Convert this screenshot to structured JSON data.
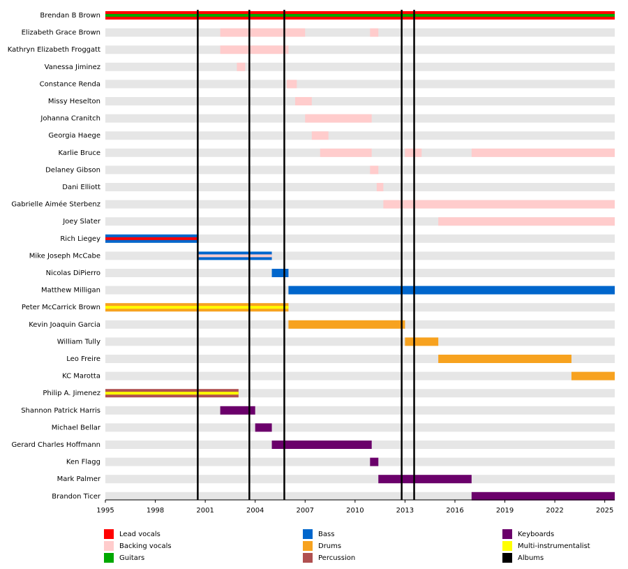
{
  "chart_data": {
    "type": "timeline",
    "categories": [
      "Brendan B Brown",
      "Elizabeth Grace Brown",
      "Kathryn Elizabeth Froggatt",
      "Vanessa Jiminez",
      "Constance Renda",
      "Missy Heselton",
      "Johanna Cranitch",
      "Georgia Haege",
      "Karlie Bruce",
      "Delaney Gibson",
      "Dani Elliott",
      "Gabrielle Aimée Sterbenz",
      "Joey Slater",
      "Rich Liegey",
      "Mike Joseph McCabe",
      "Nicolas DiPierro",
      "Matthew Milligan",
      "Peter McCarrick Brown",
      "Kevin Joaquin Garcia",
      "William Tully",
      "Leo Freire",
      "KC Marotta",
      "Philip A. Jimenez",
      "Shannon Patrick Harris",
      "Michael Bellar",
      "Gerard Charles Hoffmann",
      "Ken Flagg",
      "Mark Palmer",
      "Brandon Ticer"
    ],
    "series": [
      {
        "name": "Lead vocals",
        "color": "#ff0000",
        "values": [
          [
            [
              1995,
              2025.6
            ]
          ],
          null,
          null,
          null,
          null,
          null,
          null,
          null,
          null,
          null,
          null,
          null,
          null,
          [
            [
              1995,
              2000.6
            ]
          ],
          null,
          null,
          null,
          null,
          null,
          null,
          null,
          null,
          null,
          null,
          null,
          null,
          null,
          null,
          null
        ]
      },
      {
        "name": "Backing vocals",
        "color": "#ffcccc",
        "values": [
          null,
          [
            [
              2001.9,
              2007
            ],
            [
              2010.9,
              2011.4
            ]
          ],
          [
            [
              2001.9,
              2006
            ]
          ],
          [
            [
              2002.9,
              2003.4
            ]
          ],
          [
            [
              2005.9,
              2006.5
            ]
          ],
          [
            [
              2006.4,
              2007.4
            ]
          ],
          [
            [
              2007,
              2011
            ]
          ],
          [
            [
              2007.4,
              2008.4
            ]
          ],
          [
            [
              2007.9,
              2011
            ],
            [
              2013,
              2014
            ],
            [
              2017,
              2025.6
            ]
          ],
          [
            [
              2010.9,
              2011.4
            ]
          ],
          [
            [
              2011.3,
              2011.7
            ]
          ],
          [
            [
              2011.7,
              2025.6
            ]
          ],
          [
            [
              2015,
              2025.6
            ]
          ],
          null,
          [
            [
              2000.6,
              2005
            ]
          ],
          null,
          null,
          null,
          null,
          null,
          null,
          null,
          null,
          null,
          null,
          null,
          null,
          null,
          null
        ]
      },
      {
        "name": "Guitars",
        "color": "#00a800",
        "values": [
          [
            [
              1995,
              2025.6
            ]
          ],
          null,
          null,
          null,
          null,
          null,
          null,
          null,
          null,
          null,
          null,
          null,
          null,
          null,
          null,
          null,
          null,
          null,
          null,
          null,
          null,
          null,
          null,
          null,
          null,
          null,
          null,
          null,
          null
        ]
      },
      {
        "name": "Bass",
        "color": "#0066cc",
        "values": [
          null,
          null,
          null,
          null,
          null,
          null,
          null,
          null,
          null,
          null,
          null,
          null,
          null,
          [
            [
              1995,
              2000.6
            ]
          ],
          [
            [
              2000.6,
              2005
            ]
          ],
          [
            [
              2005,
              2006
            ]
          ],
          [
            [
              2006,
              2025.6
            ]
          ],
          null,
          null,
          null,
          null,
          null,
          null,
          null,
          null,
          null,
          null,
          null,
          null
        ]
      },
      {
        "name": "Drums",
        "color": "#f7a21f",
        "values": [
          null,
          null,
          null,
          null,
          null,
          null,
          null,
          null,
          null,
          null,
          null,
          null,
          null,
          null,
          null,
          null,
          null,
          [
            [
              1995,
              2006
            ]
          ],
          [
            [
              2006,
              2013
            ]
          ],
          [
            [
              2013,
              2015
            ]
          ],
          [
            [
              2015,
              2023
            ]
          ],
          [
            [
              2023,
              2025.6
            ]
          ],
          null,
          null,
          null,
          null,
          null,
          null,
          null
        ]
      },
      {
        "name": "Percussion",
        "color": "#b05050",
        "values": [
          null,
          null,
          null,
          null,
          null,
          null,
          null,
          null,
          null,
          null,
          null,
          null,
          null,
          null,
          null,
          null,
          null,
          null,
          null,
          null,
          null,
          null,
          [
            [
              1995,
              2003
            ]
          ],
          null,
          null,
          null,
          null,
          null,
          null
        ]
      },
      {
        "name": "Keyboards",
        "color": "#6b006b",
        "values": [
          null,
          null,
          null,
          null,
          null,
          null,
          null,
          null,
          null,
          null,
          null,
          null,
          null,
          null,
          null,
          null,
          null,
          null,
          null,
          null,
          null,
          null,
          null,
          [
            [
              2001.9,
              2004
            ]
          ],
          [
            [
              2004,
              2005
            ]
          ],
          [
            [
              2005,
              2011
            ]
          ],
          [
            [
              2010.9,
              2011.4
            ]
          ],
          [
            [
              2011.4,
              2017
            ]
          ],
          [
            [
              2017,
              2025.6
            ]
          ]
        ]
      },
      {
        "name": "Multi-instrumentalist",
        "color": "#ffff00",
        "values": [
          null,
          null,
          null,
          null,
          null,
          null,
          null,
          null,
          null,
          null,
          null,
          null,
          null,
          null,
          null,
          null,
          null,
          [
            [
              1995,
              2006
            ]
          ],
          null,
          null,
          null,
          null,
          [
            [
              1995,
              2003
            ]
          ],
          null,
          null,
          null,
          null,
          null,
          null
        ]
      }
    ],
    "albums": {
      "name": "Albums",
      "color": "#000000",
      "values": [
        2000.55,
        2003.65,
        2005.75,
        2012.8,
        2013.55
      ]
    },
    "xlim": [
      1995,
      2025.6
    ],
    "xticks": [
      1995,
      1998,
      2001,
      2004,
      2007,
      2010,
      2013,
      2016,
      2019,
      2022,
      2025
    ]
  }
}
